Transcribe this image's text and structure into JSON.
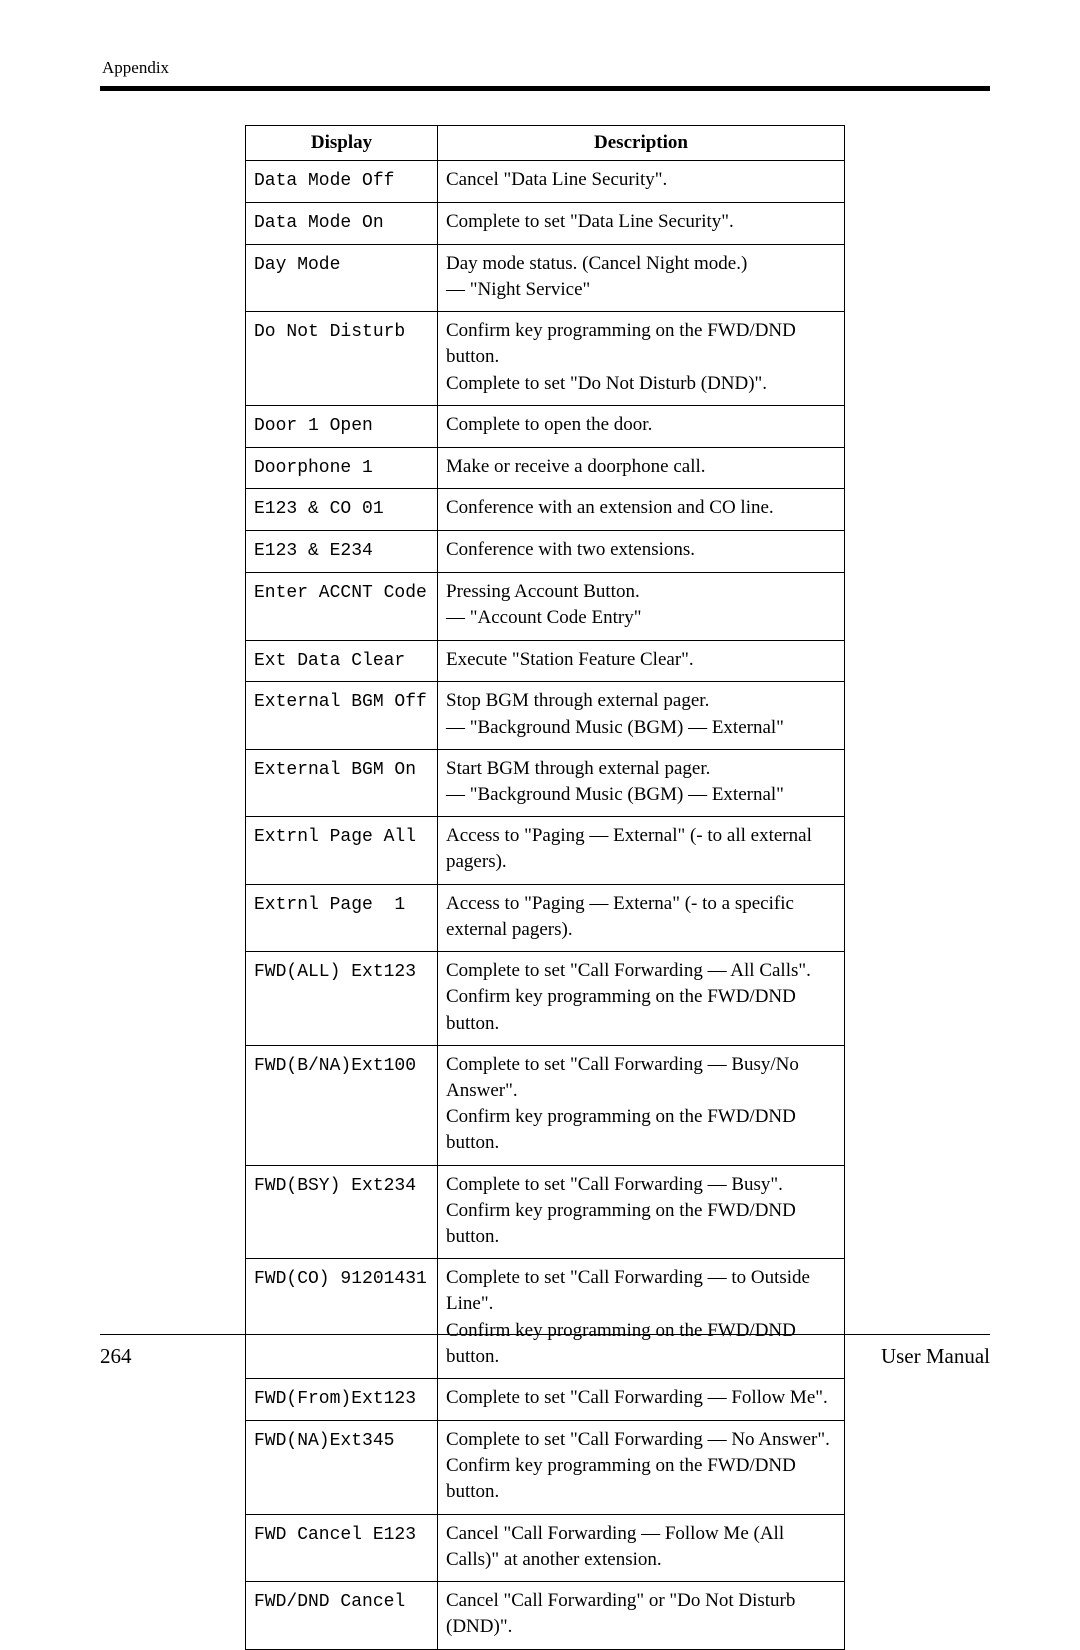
{
  "header": {
    "section": "Appendix"
  },
  "table": {
    "columns": {
      "display": "Display",
      "description": "Description"
    },
    "rows": [
      {
        "display": "Data Mode Off",
        "description": "Cancel \"Data Line Security\"."
      },
      {
        "display": "Data Mode On",
        "description": "Complete to set \"Data Line Security\"."
      },
      {
        "display": "Day Mode",
        "description": "Day mode status. (Cancel Night mode.)\n— \"Night Service\""
      },
      {
        "display": "Do Not Disturb",
        "description": "Confirm key programming on the FWD/DND button.\nComplete to set \"Do Not Disturb (DND)\"."
      },
      {
        "display": "Door 1 Open",
        "description": "Complete to open the door."
      },
      {
        "display": "Doorphone 1",
        "description": "Make or receive a doorphone call."
      },
      {
        "display": "E123 & CO 01",
        "description": "Conference with an extension and CO line."
      },
      {
        "display": "E123 & E234",
        "description": "Conference with two extensions."
      },
      {
        "display": "Enter ACCNT Code",
        "description": "Pressing Account Button.\n— \"Account Code Entry\""
      },
      {
        "display": "Ext Data Clear",
        "description": "Execute \"Station Feature Clear\"."
      },
      {
        "display": "External BGM Off",
        "description": "Stop BGM through external pager.\n— \"Background Music (BGM) — External\""
      },
      {
        "display": "External BGM On",
        "description": "Start BGM through external pager.\n— \"Background Music (BGM) — External\""
      },
      {
        "display": "Extrnl Page All",
        "description": "Access to \"Paging — External\" (- to all external pagers)."
      },
      {
        "display": "Extrnl Page  1",
        "description": "Access to \"Paging — Externa\" (- to a specific external pagers)."
      },
      {
        "display": "FWD(ALL) Ext123",
        "description": "Complete to set \"Call Forwarding — All Calls\".\nConfirm key programming on the FWD/DND button."
      },
      {
        "display": "FWD(B/NA)Ext100",
        "description": "Complete to set \"Call Forwarding — Busy/No Answer\".\nConfirm key programming on the FWD/DND button."
      },
      {
        "display": "FWD(BSY) Ext234",
        "description": "Complete to set \"Call Forwarding — Busy\".\nConfirm key programming on the FWD/DND button."
      },
      {
        "display": "FWD(CO) 91201431",
        "description": "Complete to set \"Call Forwarding — to Outside Line\".\nConfirm key programming on the FWD/DND button."
      },
      {
        "display": "FWD(From)Ext123",
        "description": "Complete to set \"Call Forwarding — Follow Me\"."
      },
      {
        "display": "FWD(NA)Ext345",
        "description": "Complete to set \"Call Forwarding — No Answer\".\nConfirm key programming on the FWD/DND button."
      },
      {
        "display": "FWD Cancel E123",
        "description": "Cancel \"Call Forwarding — Follow Me (All Calls)\" at another extension."
      },
      {
        "display": "FWD/DND Cancel",
        "description": "Cancel \"Call Forwarding\" or \"Do Not Disturb (DND)\"."
      }
    ]
  },
  "footer": {
    "page_number": "264",
    "doc_title": "User Manual"
  }
}
